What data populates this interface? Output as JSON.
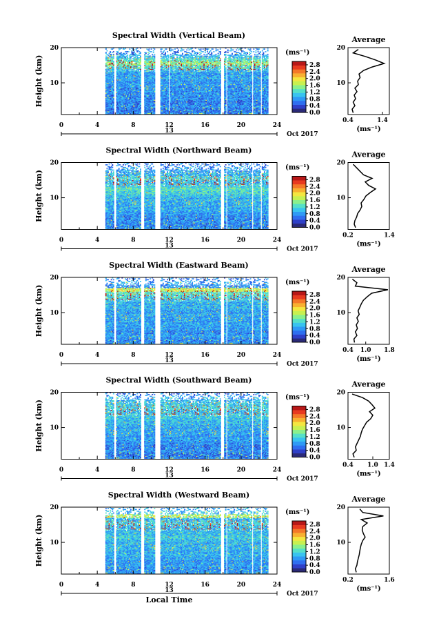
{
  "figure": {
    "xlabel": "Local Time",
    "date_label": "Oct 2017",
    "day_label": "13"
  },
  "colormap": [
    "#2b2a78",
    "#2f40c8",
    "#2f6ff0",
    "#2f9af5",
    "#39c4ef",
    "#55e0c8",
    "#8af08c",
    "#c8f050",
    "#f4e640",
    "#f8b030",
    "#f47828",
    "#e83a20",
    "#b81818"
  ],
  "chart_data": [
    {
      "type": "heatmap",
      "title": "Spectral Width (Vertical Beam)",
      "xlabel": "",
      "ylabel": "Height (km)",
      "xlim": [
        0,
        24
      ],
      "xticks": [
        0,
        4,
        8,
        12,
        16,
        20,
        24
      ],
      "ylim": [
        1,
        20
      ],
      "yticks": [
        10,
        20
      ],
      "colorbar": {
        "label": "(ms⁻¹)",
        "min": 0,
        "max": 3.0,
        "ticks": [
          0.0,
          0.4,
          0.8,
          1.2,
          1.6,
          2.0,
          2.4,
          2.8
        ]
      },
      "data_gaps_hours": [
        [
          5.75,
          6.0
        ],
        [
          8.75,
          9.1
        ],
        [
          10.3,
          10.95
        ],
        [
          11.95,
          12.05
        ],
        [
          17.7,
          18.0
        ],
        [
          18.3,
          18.45
        ],
        [
          21.1,
          21.3
        ],
        [
          22.1,
          22.3
        ]
      ],
      "data_start_hours": 4.9,
      "data_end_hours": 23.0,
      "profile": {
        "title": "Average",
        "xlabel": "(ms⁻¹)",
        "xlim": [
          0.4,
          1.6
        ],
        "xticks": [
          0.4,
          1.4
        ],
        "ylim": [
          1,
          20
        ],
        "height": [
          1.5,
          2.5,
          3.5,
          4.5,
          5.5,
          6.5,
          7.5,
          8.5,
          9.5,
          10.5,
          11.5,
          12.5,
          13.5,
          14.5,
          15.5,
          16.5,
          17.5,
          18.5,
          19.5
        ],
        "value": [
          0.55,
          0.52,
          0.6,
          0.55,
          0.62,
          0.58,
          0.66,
          0.6,
          0.7,
          0.68,
          0.75,
          0.72,
          0.85,
          1.1,
          1.45,
          1.2,
          0.9,
          0.55,
          0.7
        ]
      }
    },
    {
      "type": "heatmap",
      "title": "Spectral Width (Northward Beam)",
      "xlabel": "",
      "ylabel": "Height (km)",
      "xlim": [
        0,
        24
      ],
      "xticks": [
        0,
        4,
        8,
        12,
        16,
        20,
        24
      ],
      "ylim": [
        1,
        20
      ],
      "yticks": [
        10,
        20
      ],
      "colorbar": {
        "label": "(ms⁻¹)",
        "min": 0,
        "max": 3.0,
        "ticks": [
          0.0,
          0.4,
          0.8,
          1.2,
          1.6,
          2.0,
          2.4,
          2.8
        ]
      },
      "data_gaps_hours": [
        [
          5.75,
          6.0
        ],
        [
          8.75,
          9.1
        ],
        [
          10.3,
          10.95
        ],
        [
          17.7,
          18.0
        ],
        [
          18.3,
          18.45
        ],
        [
          21.1,
          21.3
        ],
        [
          22.1,
          22.3
        ]
      ],
      "data_start_hours": 4.9,
      "data_end_hours": 23.0,
      "profile": {
        "title": "Average",
        "xlabel": "(ms⁻¹)",
        "xlim": [
          0.2,
          1.4
        ],
        "xticks": [
          0.2,
          1.4
        ],
        "ylim": [
          1,
          20
        ],
        "height": [
          1.5,
          2.5,
          3.5,
          4.5,
          5.5,
          6.5,
          7.5,
          8.5,
          9.5,
          10.5,
          11.5,
          12.5,
          13.5,
          14.5,
          15.5,
          16.5,
          17.5,
          18.5,
          19.5
        ],
        "value": [
          0.42,
          0.38,
          0.4,
          0.45,
          0.48,
          0.55,
          0.6,
          0.58,
          0.66,
          0.72,
          0.85,
          1.0,
          0.8,
          0.7,
          0.9,
          0.65,
          0.55,
          0.45,
          0.35
        ]
      }
    },
    {
      "type": "heatmap",
      "title": "Spectral Width (Eastward Beam)",
      "xlabel": "",
      "ylabel": "Height (km)",
      "xlim": [
        0,
        24
      ],
      "xticks": [
        0,
        4,
        8,
        12,
        16,
        20,
        24
      ],
      "ylim": [
        1,
        20
      ],
      "yticks": [
        10,
        20
      ],
      "colorbar": {
        "label": "(ms⁻¹)",
        "min": 0,
        "max": 3.0,
        "ticks": [
          0.0,
          0.4,
          0.8,
          1.2,
          1.6,
          2.0,
          2.4,
          2.8
        ]
      },
      "data_gaps_hours": [
        [
          5.75,
          6.0
        ],
        [
          8.75,
          9.1
        ],
        [
          10.3,
          10.95
        ],
        [
          17.7,
          18.0
        ],
        [
          18.3,
          18.45
        ],
        [
          21.1,
          21.3
        ],
        [
          22.1,
          22.3
        ]
      ],
      "data_start_hours": 4.9,
      "data_end_hours": 23.0,
      "profile": {
        "title": "Average",
        "xlabel": "(ms⁻¹)",
        "xlim": [
          0.4,
          1.8
        ],
        "xticks": [
          0.4,
          1.0,
          1.8
        ],
        "ylim": [
          1,
          20
        ],
        "height": [
          1.5,
          2.5,
          3.5,
          4.5,
          5.5,
          6.5,
          7.5,
          8.5,
          9.5,
          10.5,
          11.5,
          12.5,
          13.5,
          14.5,
          15.5,
          16.5,
          17.5,
          18.5,
          19.5
        ],
        "value": [
          0.62,
          0.6,
          0.7,
          0.65,
          0.72,
          0.68,
          0.75,
          0.7,
          0.78,
          0.74,
          0.8,
          0.85,
          0.92,
          1.05,
          1.2,
          1.75,
          0.65,
          0.7,
          0.55
        ]
      }
    },
    {
      "type": "heatmap",
      "title": "Spectral Width (Southward Beam)",
      "xlabel": "",
      "ylabel": "Height (km)",
      "xlim": [
        0,
        24
      ],
      "xticks": [
        0,
        4,
        8,
        12,
        16,
        20,
        24
      ],
      "ylim": [
        1,
        20
      ],
      "yticks": [
        10,
        20
      ],
      "colorbar": {
        "label": "(ms⁻¹)",
        "min": 0,
        "max": 3.0,
        "ticks": [
          0.0,
          0.4,
          0.8,
          1.2,
          1.6,
          2.0,
          2.4,
          2.8
        ]
      },
      "data_gaps_hours": [
        [
          5.75,
          6.0
        ],
        [
          8.75,
          9.1
        ],
        [
          10.3,
          10.95
        ],
        [
          17.7,
          18.0
        ],
        [
          18.3,
          18.45
        ],
        [
          21.1,
          21.3
        ],
        [
          22.1,
          22.3
        ]
      ],
      "data_start_hours": 4.9,
      "data_end_hours": 23.0,
      "profile": {
        "title": "Average",
        "xlabel": "(ms⁻¹)",
        "xlim": [
          0.4,
          1.4
        ],
        "xticks": [
          0.4,
          1.0,
          1.4
        ],
        "ylim": [
          1,
          20
        ],
        "height": [
          1.5,
          2.5,
          3.5,
          4.5,
          5.5,
          6.5,
          7.5,
          8.5,
          9.5,
          10.5,
          11.5,
          12.5,
          13.5,
          14.5,
          15.5,
          16.5,
          17.5,
          18.5,
          19.5
        ],
        "value": [
          0.55,
          0.52,
          0.6,
          0.58,
          0.62,
          0.66,
          0.7,
          0.72,
          0.75,
          0.8,
          0.85,
          0.95,
          1.0,
          0.92,
          1.05,
          0.98,
          0.9,
          0.75,
          0.5
        ]
      }
    },
    {
      "type": "heatmap",
      "title": "Spectral Width (Westward Beam)",
      "xlabel": "",
      "ylabel": "Height (km)",
      "xlim": [
        0,
        24
      ],
      "xticks": [
        0,
        4,
        8,
        12,
        16,
        20,
        24
      ],
      "ylim": [
        1,
        20
      ],
      "yticks": [
        10,
        20
      ],
      "colorbar": {
        "label": "(ms⁻¹)",
        "min": 0,
        "max": 3.0,
        "ticks": [
          0.0,
          0.4,
          0.8,
          1.2,
          1.6,
          2.0,
          2.4,
          2.8
        ]
      },
      "data_gaps_hours": [
        [
          5.75,
          6.0
        ],
        [
          8.75,
          9.1
        ],
        [
          10.3,
          10.95
        ],
        [
          17.7,
          18.0
        ],
        [
          18.3,
          18.45
        ],
        [
          21.1,
          21.3
        ],
        [
          22.1,
          22.3
        ]
      ],
      "data_start_hours": 4.9,
      "data_end_hours": 23.0,
      "profile": {
        "title": "Average",
        "xlabel": "(ms⁻¹)",
        "xlim": [
          0.2,
          1.6
        ],
        "xticks": [
          0.2,
          1.6
        ],
        "ylim": [
          1,
          20
        ],
        "height": [
          1.5,
          2.5,
          3.5,
          4.5,
          5.5,
          6.5,
          7.5,
          8.5,
          9.5,
          10.5,
          11.5,
          12.5,
          13.5,
          14.5,
          15.5,
          16.5,
          17.5,
          18.5,
          19.5
        ],
        "value": [
          0.48,
          0.45,
          0.5,
          0.52,
          0.55,
          0.58,
          0.6,
          0.62,
          0.65,
          0.7,
          0.78,
          0.72,
          0.68,
          0.7,
          0.85,
          0.65,
          1.4,
          0.7,
          0.6
        ]
      }
    }
  ]
}
